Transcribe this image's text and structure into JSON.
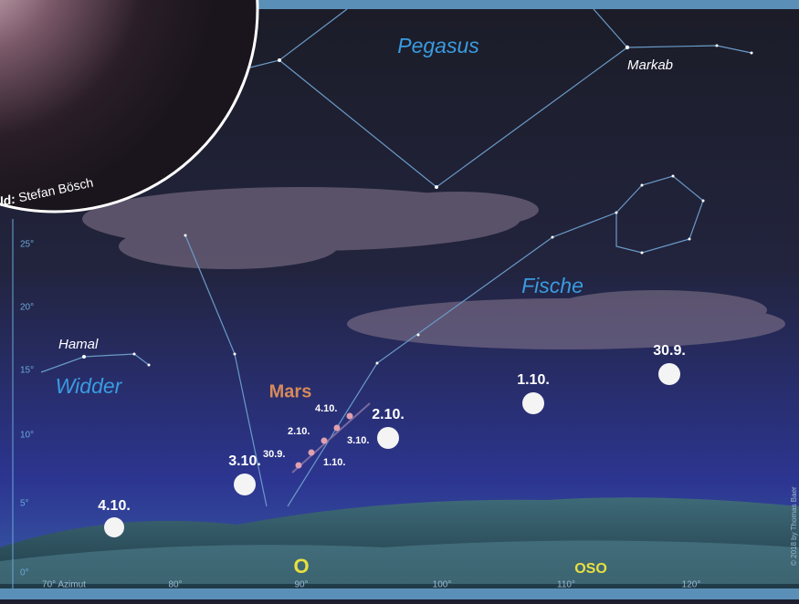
{
  "credit": {
    "prefix": "ld:",
    "name": "Stefan Bösch"
  },
  "constellations": [
    "Pegasus",
    "Fische",
    "Widder"
  ],
  "stars": [
    "Markab",
    "Hamal"
  ],
  "planet": {
    "name": "Mars",
    "dates": [
      "4.10.",
      "3.10.",
      "2.10.",
      "1.10.",
      "30.9."
    ]
  },
  "moon_dates": [
    "30.9.",
    "1.10.",
    "2.10.",
    "3.10.",
    "4.10."
  ],
  "altitude_labels": [
    "25°",
    "20°",
    "15°",
    "10°",
    "5°",
    "0°"
  ],
  "azimuth_labels": [
    "70° Azimut",
    "80°",
    "90°",
    "100°",
    "110°",
    "120°"
  ],
  "directions": [
    "O",
    "OSO"
  ],
  "copyright": "© 2018 by Thomas Baer"
}
